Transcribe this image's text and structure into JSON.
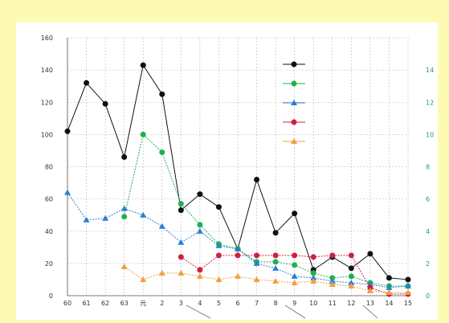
{
  "chart_data": {
    "type": "line",
    "categories": [
      "60",
      "61",
      "62",
      "63",
      "元",
      "2",
      "3",
      "4",
      "5",
      "6",
      "7",
      "8",
      "9",
      "10",
      "11",
      "12",
      "13",
      "14",
      "15"
    ],
    "y_left": {
      "range": [
        0,
        160
      ],
      "ticks": [
        "0",
        "20",
        "40",
        "60",
        "80",
        "100",
        "120",
        "140",
        "160"
      ]
    },
    "y_right": {
      "range": [
        0,
        16
      ],
      "ticks": [
        "0",
        "2",
        "4",
        "6",
        "8",
        "10",
        "12",
        "14"
      ]
    },
    "x_sub_labels": [],
    "grid": true,
    "legend_position": "top-right",
    "colors": {
      "background": "#fdfbb3",
      "plot": "#ffffff",
      "grid": "#b8b8b8",
      "left_axis_label": "#e8a060",
      "right_axis_label": "#3aaa6a",
      "right_ticks": "#2a9a5a"
    },
    "series": [
      {
        "color": "#111111",
        "marker": "circle",
        "axis": "left",
        "values": [
          102,
          132,
          119,
          86,
          143,
          125,
          53,
          63,
          55,
          29,
          72,
          39,
          51,
          16,
          24,
          17,
          26,
          11,
          10
        ]
      },
      {
        "color": "#20b050",
        "marker": "circle",
        "axis": "right",
        "values": [
          null,
          null,
          null,
          4.9,
          10.0,
          8.9,
          5.7,
          4.4,
          3.2,
          2.9,
          2.1,
          2.1,
          1.9,
          1.4,
          1.1,
          1.2,
          0.8,
          0.6,
          0.6
        ]
      },
      {
        "color": "#2a80d0",
        "marker": "triangle",
        "axis": "left",
        "values": [
          64,
          47,
          48,
          54,
          50,
          43,
          33,
          40,
          31,
          29,
          20,
          17,
          12,
          11,
          9,
          8,
          7,
          5,
          6
        ]
      },
      {
        "color": "#d02040",
        "marker": "circle",
        "axis": "left",
        "values": [
          null,
          null,
          null,
          null,
          null,
          null,
          24,
          16,
          25,
          25,
          25,
          25,
          25,
          24,
          25,
          25,
          5,
          1,
          1
        ]
      },
      {
        "color": "#f0a040",
        "marker": "triangle",
        "axis": "left",
        "values": [
          null,
          null,
          null,
          18,
          10,
          14,
          14,
          12,
          10,
          12,
          10,
          9,
          8,
          9,
          7,
          6,
          3,
          2,
          2
        ]
      }
    ]
  }
}
